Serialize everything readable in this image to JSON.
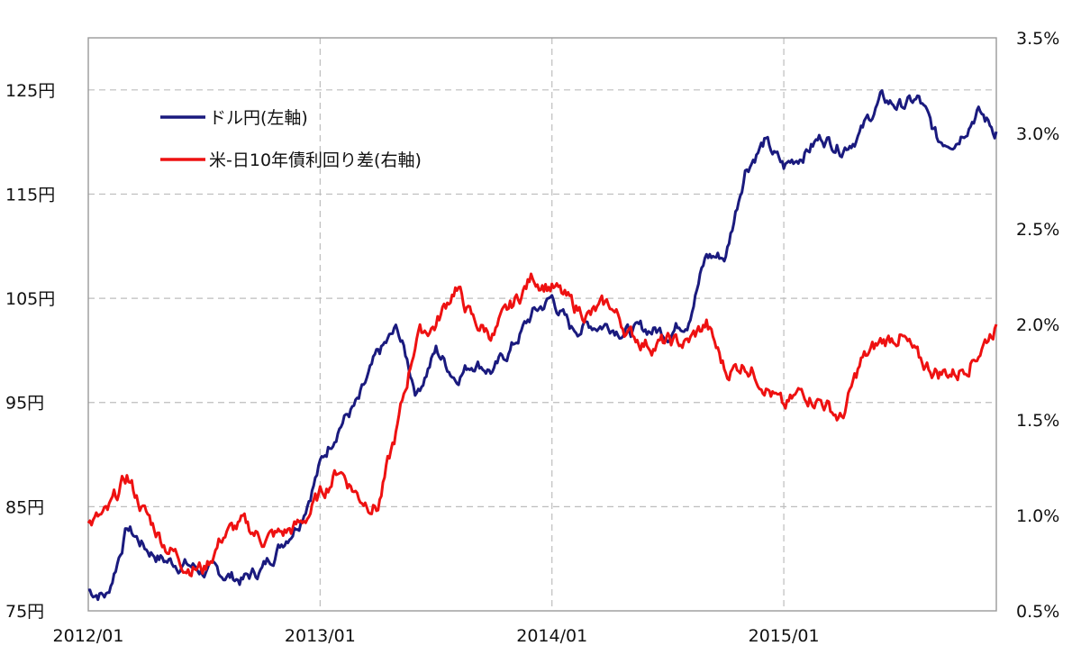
{
  "chart_data": {
    "type": "line",
    "title": "",
    "xlabel": "",
    "grid": true,
    "legend_position": "top-left",
    "x_ticks": [
      "2012/01",
      "2013/01",
      "2014/01",
      "2015/01"
    ],
    "x_range": [
      "2012/01",
      "2015/12"
    ],
    "y_left": {
      "ticks": [
        "75円",
        "85円",
        "95円",
        "105円",
        "115円",
        "125円"
      ],
      "range": [
        75,
        130
      ]
    },
    "y_right": {
      "ticks": [
        "0.5%",
        "1.0%",
        "1.5%",
        "2.0%",
        "2.5%",
        "3.0%",
        "3.5%"
      ],
      "range": [
        0.5,
        3.5
      ]
    },
    "series": [
      {
        "name": "ドル円(左軸)",
        "axis": "left",
        "color": "#1a1a7e",
        "x": [
          "2012/01",
          "2012/02",
          "2012/03",
          "2012/04",
          "2012/05",
          "2012/06",
          "2012/07",
          "2012/08",
          "2012/09",
          "2012/10",
          "2012/11",
          "2012/12",
          "2013/01",
          "2013/02",
          "2013/03",
          "2013/04",
          "2013/05",
          "2013/06",
          "2013/07",
          "2013/08",
          "2013/09",
          "2013/10",
          "2013/11",
          "2013/12",
          "2014/01",
          "2014/02",
          "2014/03",
          "2014/04",
          "2014/05",
          "2014/06",
          "2014/07",
          "2014/08",
          "2014/09",
          "2014/10",
          "2014/11",
          "2014/12",
          "2015/01",
          "2015/02",
          "2015/03",
          "2015/04",
          "2015/05",
          "2015/06",
          "2015/07",
          "2015/08",
          "2015/09",
          "2015/10",
          "2015/11",
          "2015/12"
        ],
        "values": [
          77,
          76.5,
          83,
          81,
          79.8,
          79.5,
          78.8,
          78.5,
          78,
          79,
          81.5,
          84,
          89,
          93,
          95,
          99.5,
          102,
          96,
          100,
          97.5,
          99,
          98,
          100.5,
          103.5,
          105,
          102,
          102.5,
          102.5,
          101.8,
          102,
          101.8,
          103,
          109,
          109,
          117.5,
          120,
          117.5,
          119,
          120.5,
          119.5,
          121,
          124,
          123.5,
          124,
          120,
          120.5,
          123,
          121
        ]
      },
      {
        "name": "米-日10年債利回り差(右軸)",
        "axis": "right",
        "color": "#ee1111",
        "x": [
          "2012/01",
          "2012/02",
          "2012/03",
          "2012/04",
          "2012/05",
          "2012/06",
          "2012/07",
          "2012/08",
          "2012/09",
          "2012/10",
          "2012/11",
          "2012/12",
          "2013/01",
          "2013/02",
          "2013/03",
          "2013/04",
          "2013/05",
          "2013/06",
          "2013/07",
          "2013/08",
          "2013/09",
          "2013/10",
          "2013/11",
          "2013/12",
          "2014/01",
          "2014/02",
          "2014/03",
          "2014/04",
          "2014/05",
          "2014/06",
          "2014/07",
          "2014/08",
          "2014/09",
          "2014/10",
          "2014/11",
          "2014/12",
          "2015/01",
          "2015/02",
          "2015/03",
          "2015/04",
          "2015/05",
          "2015/06",
          "2015/07",
          "2015/08",
          "2015/09",
          "2015/10",
          "2015/11",
          "2015/12"
        ],
        "values": [
          0.95,
          1.0,
          1.2,
          1.0,
          0.85,
          0.75,
          0.72,
          0.9,
          0.95,
          0.88,
          0.9,
          0.95,
          1.1,
          1.25,
          1.1,
          1.05,
          1.45,
          1.95,
          2.0,
          2.2,
          2.0,
          1.95,
          2.1,
          2.25,
          2.2,
          2.1,
          2.05,
          2.1,
          1.95,
          1.9,
          1.9,
          1.9,
          2.0,
          1.75,
          1.8,
          1.7,
          1.55,
          1.65,
          1.6,
          1.5,
          1.8,
          1.9,
          1.95,
          1.8,
          1.75,
          1.75,
          1.85,
          2.0
        ]
      }
    ]
  }
}
